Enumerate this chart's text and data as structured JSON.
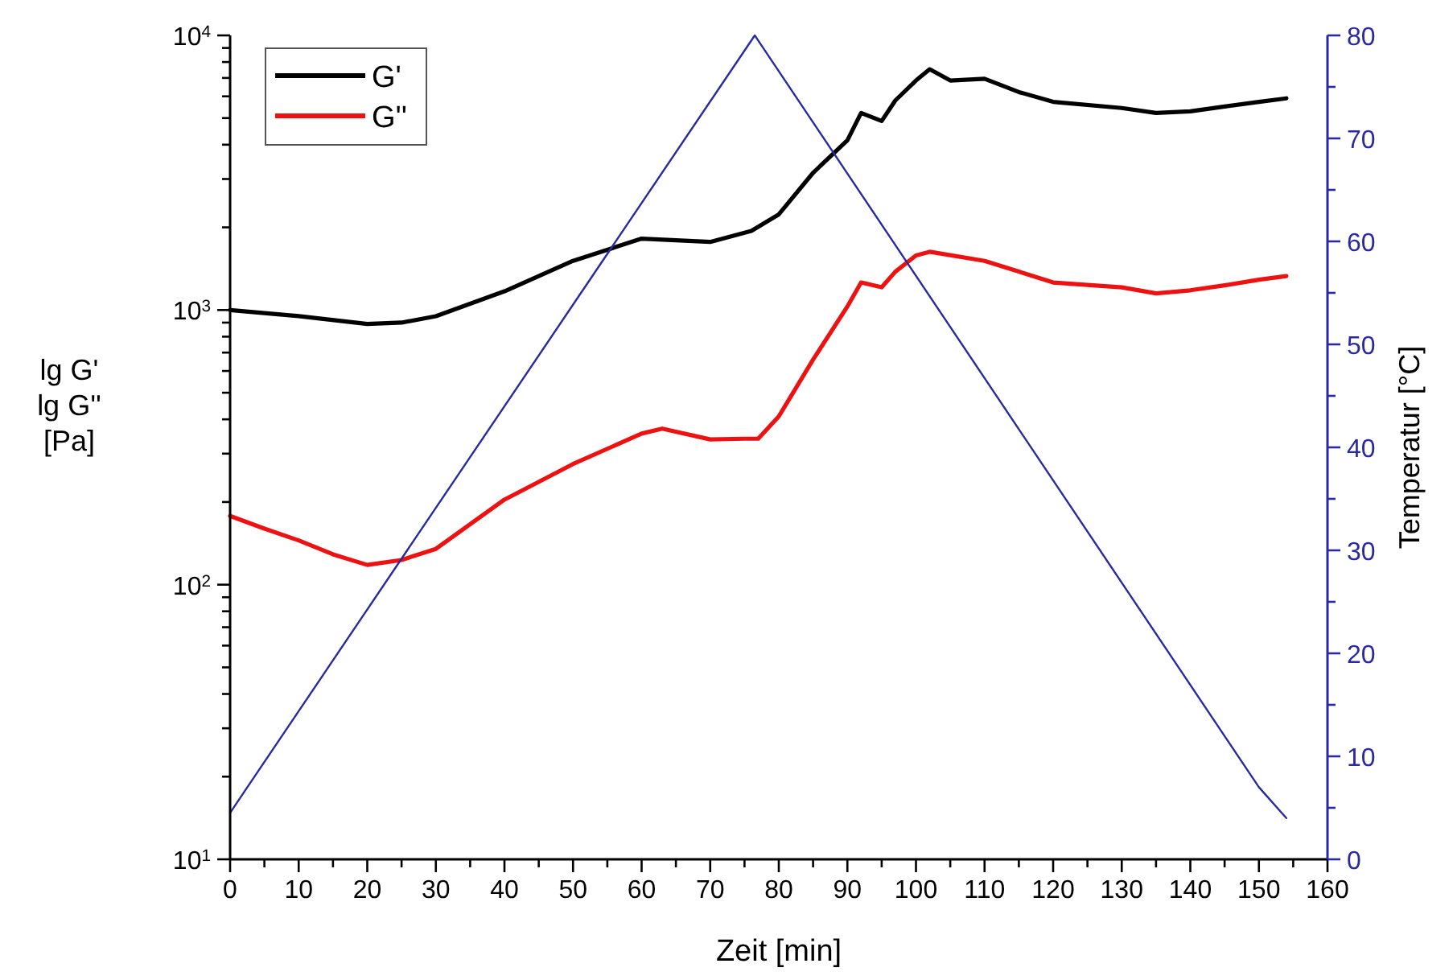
{
  "chart_data": {
    "type": "line",
    "xlabel": "Zeit [min]",
    "ylabel": "lg G'\nlg G''\n[Pa]",
    "y2label": "Temperatur [°C]",
    "log": "y",
    "legend": "top left",
    "grid": false,
    "marker": "none",
    "line_style": "solid",
    "xlim": [
      0,
      160
    ],
    "ylim": [
      10,
      10000
    ],
    "y2lim": [
      0,
      80
    ],
    "xticks": [
      0,
      {
        "value": 5,
        "label": null
      },
      10,
      {
        "value": 15,
        "label": null
      },
      20,
      {
        "value": 25,
        "label": null
      },
      30,
      {
        "value": 35,
        "label": null
      },
      40,
      {
        "value": 45,
        "label": null
      },
      50,
      {
        "value": 55,
        "label": null
      },
      60,
      {
        "value": 65,
        "label": null
      },
      70,
      {
        "value": 75,
        "label": null
      },
      80,
      {
        "value": 85,
        "label": null
      },
      90,
      {
        "value": 95,
        "label": null
      },
      100,
      {
        "value": 105,
        "label": null
      },
      110,
      {
        "value": 115,
        "label": null
      },
      120,
      {
        "value": 125,
        "label": null
      },
      130,
      {
        "value": 135,
        "label": null
      },
      140,
      {
        "value": 145,
        "label": null
      },
      150,
      {
        "value": 155,
        "label": null
      },
      160
    ],
    "yticks": [
      {
        "value": 10,
        "label": "10$^{1}$"
      },
      {
        "value": 20,
        "label": null
      },
      {
        "value": 30,
        "label": null
      },
      {
        "value": 40,
        "label": null
      },
      {
        "value": 50,
        "label": null
      },
      {
        "value": 60,
        "label": null
      },
      {
        "value": 70,
        "label": null
      },
      {
        "value": 80,
        "label": null
      },
      {
        "value": 90,
        "label": null
      },
      {
        "value": 100,
        "label": "10$^{2}$"
      },
      {
        "value": 200,
        "label": null
      },
      {
        "value": 300,
        "label": null
      },
      {
        "value": 400,
        "label": null
      },
      {
        "value": 500,
        "label": null
      },
      {
        "value": 600,
        "label": null
      },
      {
        "value": 700,
        "label": null
      },
      {
        "value": 800,
        "label": null
      },
      {
        "value": 900,
        "label": null
      },
      {
        "value": 1000,
        "label": "10$^{3}$"
      },
      {
        "value": 2000,
        "label": null
      },
      {
        "value": 3000,
        "label": null
      },
      {
        "value": 4000,
        "label": null
      },
      {
        "value": 5000,
        "label": null
      },
      {
        "value": 6000,
        "label": null
      },
      {
        "value": 7000,
        "label": null
      },
      {
        "value": 8000,
        "label": null
      },
      {
        "value": 9000,
        "label": null
      },
      {
        "value": 10000,
        "label": "10$^{4}$"
      }
    ],
    "y2ticks": [
      0,
      {
        "value": 5,
        "label": null
      },
      10,
      {
        "value": 15,
        "label": null
      },
      20,
      {
        "value": 25,
        "label": null
      },
      30,
      {
        "value": 35,
        "label": null
      },
      40,
      {
        "value": 45,
        "label": null
      },
      50,
      {
        "value": 55,
        "label": null
      },
      60,
      {
        "value": 65,
        "label": null
      },
      70,
      {
        "value": 75,
        "label": null
      },
      80
    ],
    "series": [
      {
        "name": "G'",
        "color": "#000000",
        "x": [
          0,
          10,
          20,
          25,
          30,
          40,
          50,
          60,
          70,
          76,
          80,
          85,
          90,
          92,
          95,
          97,
          100,
          102,
          105,
          110,
          115,
          120,
          130,
          135,
          140,
          145,
          150,
          154
        ],
        "values": [
          1000,
          950,
          890,
          900,
          950,
          1170,
          1510,
          1820,
          1770,
          1940,
          2230,
          3160,
          4150,
          5220,
          4880,
          5800,
          6850,
          7530,
          6850,
          6950,
          6220,
          5730,
          5440,
          5220,
          5290,
          5510,
          5730,
          5900
        ]
      },
      {
        "name": "G''",
        "color": "#ee1111",
        "x": [
          0,
          5,
          10,
          15,
          20,
          25,
          30,
          40,
          50,
          60,
          63,
          70,
          75,
          77,
          80,
          85,
          90,
          92,
          95,
          97,
          100,
          102,
          110,
          115,
          120,
          130,
          135,
          140,
          145,
          150,
          154
        ],
        "values": [
          178,
          160,
          145,
          129,
          118,
          123,
          135,
          204,
          275,
          355,
          370,
          338,
          340,
          340,
          410,
          660,
          1030,
          1260,
          1210,
          1380,
          1580,
          1630,
          1510,
          1380,
          1260,
          1210,
          1150,
          1180,
          1230,
          1290,
          1330
        ]
      },
      {
        "color": "#2a2aa0",
        "axis": "y2",
        "x": [
          0,
          2,
          76.5,
          77,
          150,
          154
        ],
        "values": [
          4.5,
          6.5,
          80,
          79.5,
          7,
          4
        ]
      }
    ]
  }
}
